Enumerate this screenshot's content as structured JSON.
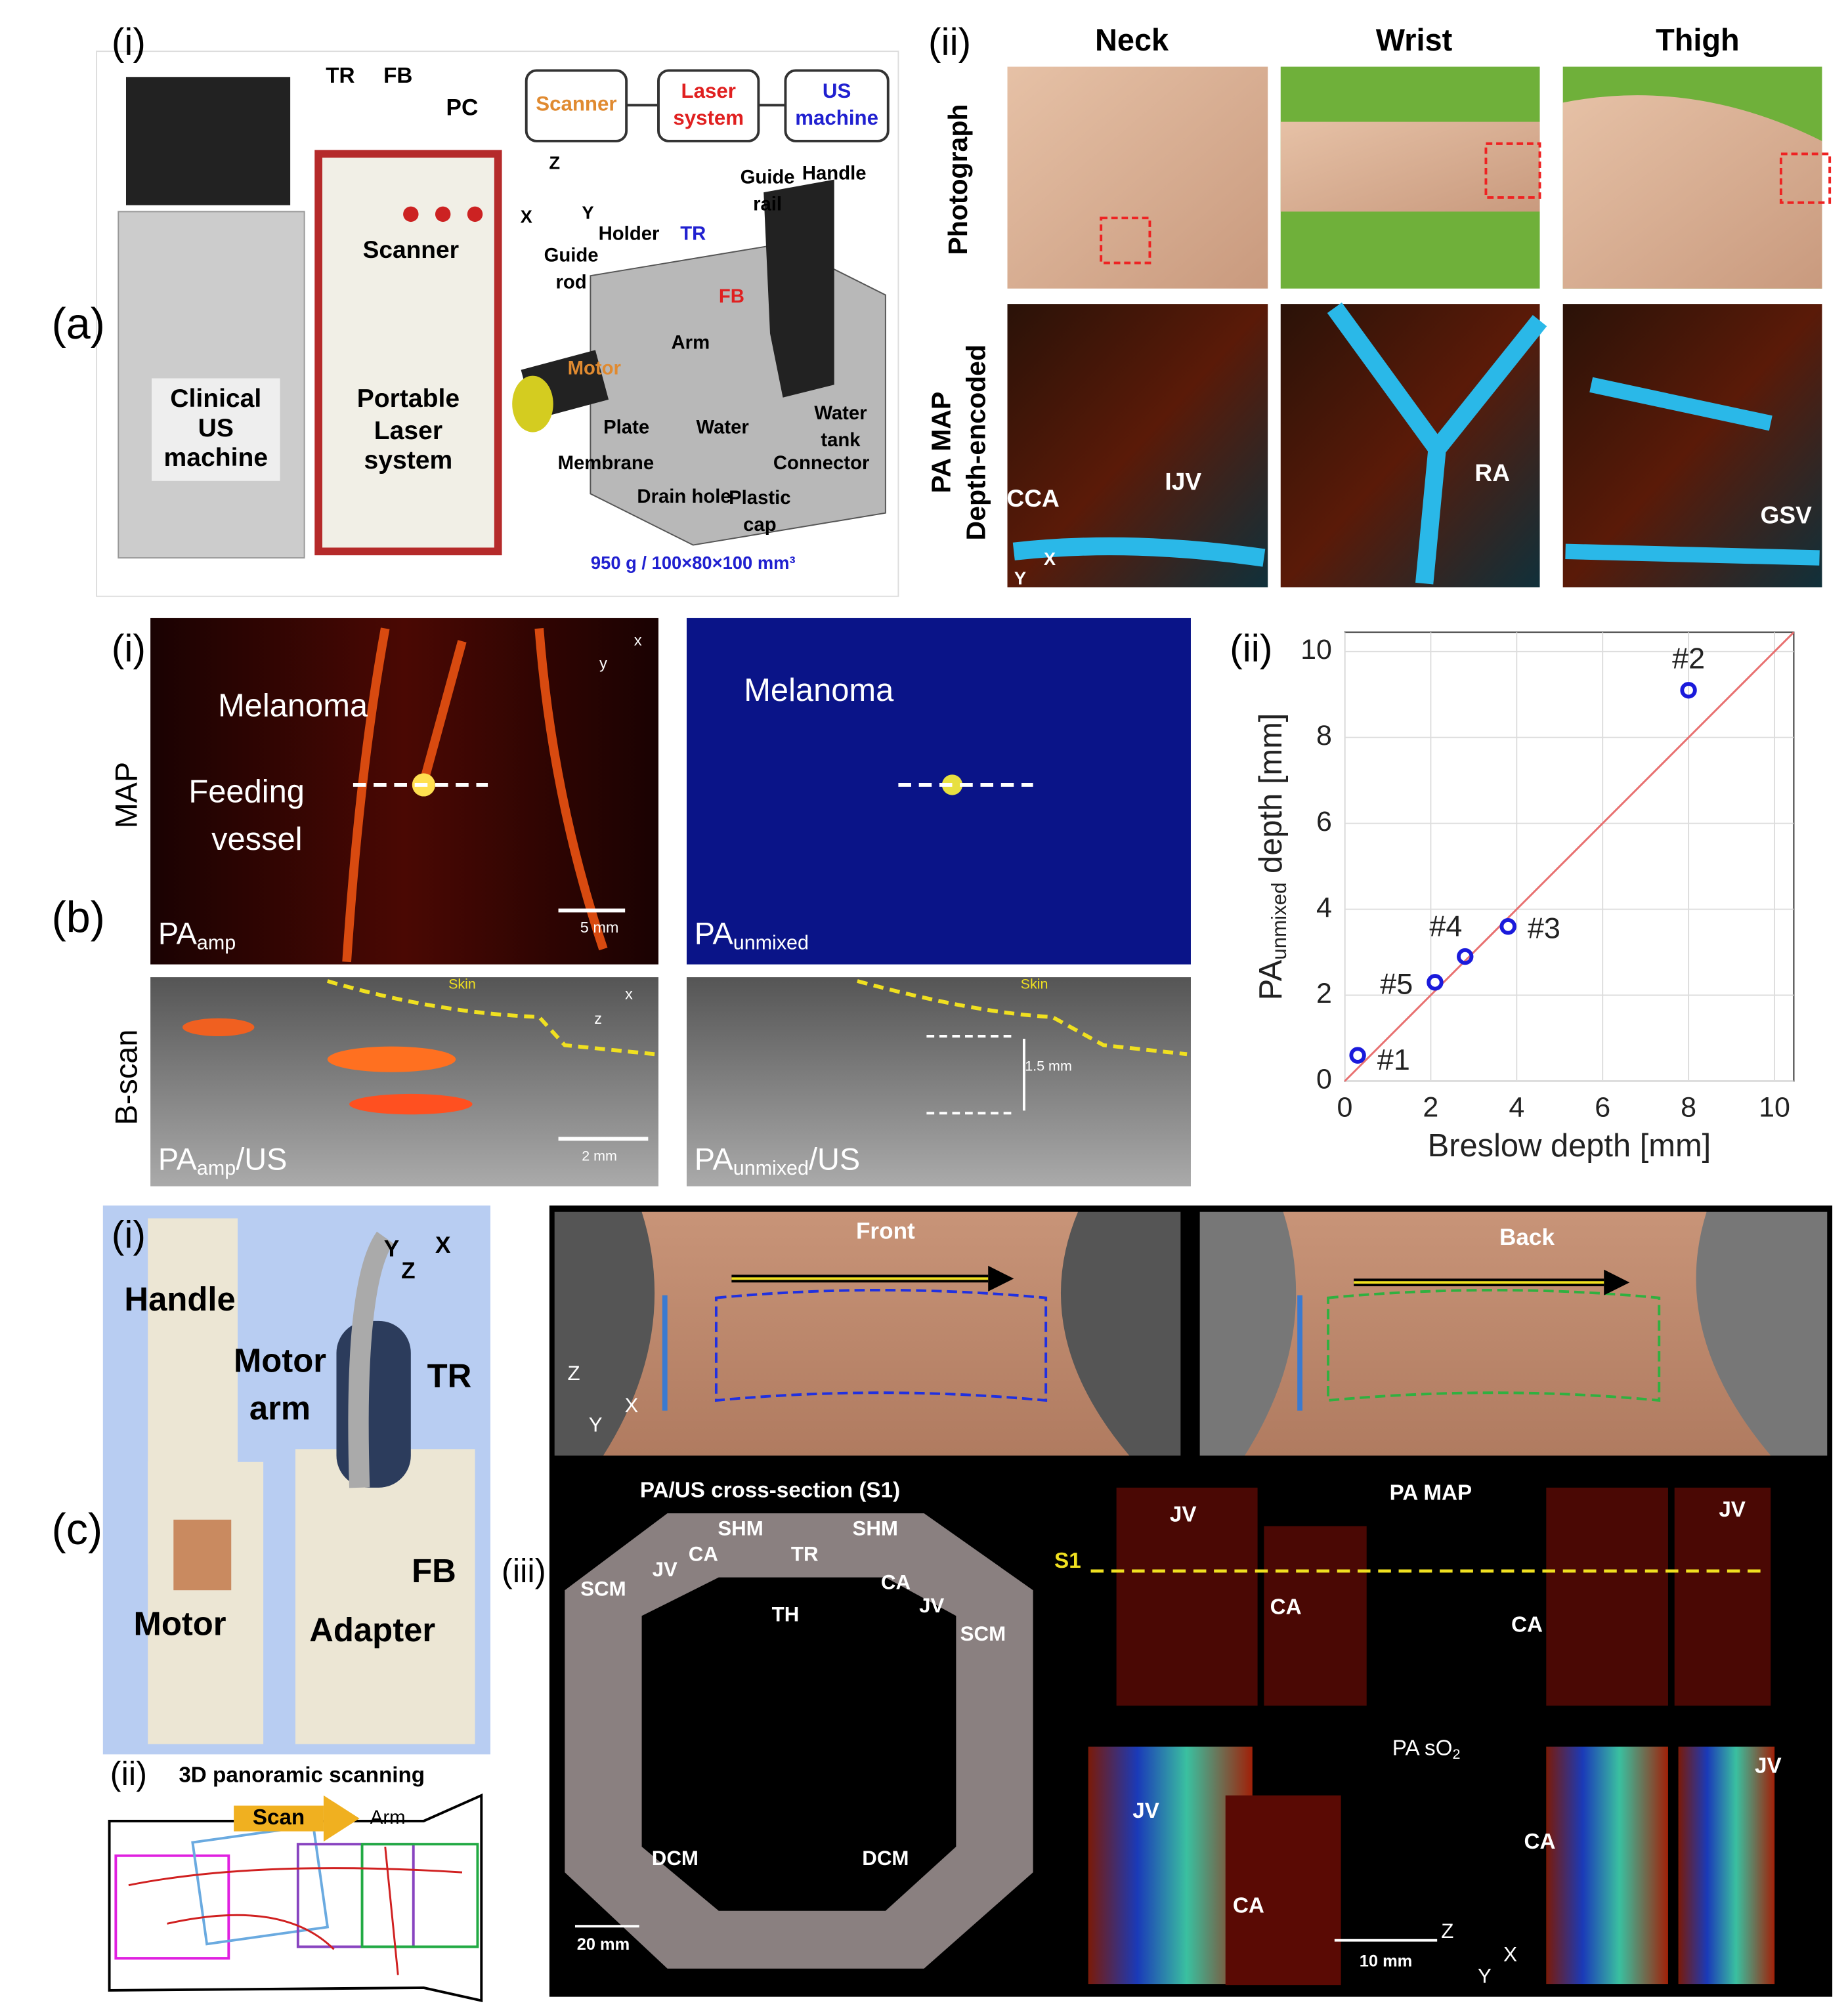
{
  "panel": {
    "a": "(a)",
    "b": "(b)",
    "c": "(c)"
  },
  "a_i": {
    "label": "(i)",
    "tr": "TR",
    "fb": "FB",
    "pc": "PC",
    "scanner": "Scanner",
    "clinical": [
      "Clinical",
      "US",
      "machine"
    ],
    "laser": [
      "Portable",
      "Laser",
      "system"
    ],
    "box_scanner": "Scanner",
    "box_laser": [
      "Laser",
      "system"
    ],
    "box_us": [
      "US",
      "machine"
    ],
    "axes": [
      "Z",
      "X",
      "Y"
    ],
    "guide_rail": [
      "Guide",
      "rail"
    ],
    "handle": "Handle",
    "holder": "Holder",
    "tr2": "TR",
    "guide_rod": [
      "Guide",
      "rod"
    ],
    "fb2": "FB",
    "arm": "Arm",
    "motor": "Motor",
    "plate": "Plate",
    "water": "Water",
    "water_tank": [
      "Water",
      "tank"
    ],
    "membrane": "Membrane",
    "connector": "Connector",
    "drain": "Drain hole",
    "cap": [
      "Plastic",
      "cap"
    ],
    "spec": "950 g / 100×80×100 mm³"
  },
  "a_ii": {
    "label": "(ii)",
    "columns": [
      "Neck",
      "Wrist",
      "Thigh"
    ],
    "row_photo": "Photograph",
    "row_pa": [
      "PA MAP",
      "Depth-encoded"
    ],
    "vessels": [
      "CCA",
      "IJV",
      "RA",
      "GSV"
    ],
    "axes": [
      "X",
      "Y"
    ]
  },
  "b_i": {
    "label": "(i)",
    "row_map": "MAP",
    "row_bscan": "B-scan",
    "melanoma": "Melanoma",
    "feeding": [
      "Feeding",
      "vessel"
    ],
    "melanoma2": "Melanoma",
    "pa_amp": {
      "main": "PA",
      "sub": "amp"
    },
    "pa_unmixed": {
      "main": "PA",
      "sub": "unmixed"
    },
    "pa_amp_us": {
      "main": "PA",
      "sub": "amp",
      "tail": "/US"
    },
    "pa_unmixed_us": {
      "main": "PA",
      "sub": "unmixed",
      "tail": "/US"
    },
    "scale_5": "5 mm",
    "scale_2": "2 mm",
    "skin": [
      "Skin",
      "Skin"
    ],
    "depth": "1.5 mm",
    "map_axes": [
      "x",
      "y"
    ],
    "bscan_axes": [
      "x",
      "z"
    ]
  },
  "b_ii": {
    "label": "(ii)",
    "chart": {
      "type": "scatter",
      "x_label": "Breslow depth [mm]",
      "y_label": {
        "main": "PA",
        "sub": "unmixed",
        "tail": " depth [mm]"
      },
      "x": [
        0.3,
        8.0,
        3.8,
        2.8,
        2.1
      ],
      "y": [
        0.6,
        9.1,
        3.6,
        2.9,
        2.3
      ],
      "point_labels": [
        "#1",
        "#2",
        "#3",
        "#4",
        "#5"
      ],
      "xlim": [
        0,
        10.45
      ],
      "ylim": [
        0,
        10.45
      ],
      "xticks": [
        0,
        2,
        4,
        6,
        8,
        10
      ],
      "yticks": [
        0,
        2,
        4,
        6,
        8,
        10
      ],
      "color": "#1a1adb",
      "line_color": "#e87070",
      "grid": true
    }
  },
  "c_i": {
    "label": "(i)",
    "handle": "Handle",
    "motor_arm": [
      "Motor",
      "arm"
    ],
    "tr": "TR",
    "fb": "FB",
    "motor": "Motor",
    "adapter": "Adapter",
    "axes": [
      "Y",
      "Z",
      "X"
    ]
  },
  "c_ii": {
    "label": "(ii)",
    "title": "3D panoramic scanning",
    "scan": "Scan",
    "arm": "Arm"
  },
  "c_iii": {
    "label": "(iii)",
    "front": "Front",
    "back": "Back",
    "axes": [
      "Z",
      "X",
      "Y"
    ],
    "cross": "PA/US cross-section (S1)",
    "anatomy": [
      "SHM",
      "SHM",
      "CA",
      "TR",
      "CA",
      "JV",
      "JV",
      "SCM",
      "SCM",
      "TH",
      "DCM",
      "DCM"
    ],
    "scale_20": "20 mm",
    "pa_map": "PA MAP",
    "map_labels": [
      "JV",
      "JV",
      "S1",
      "CA",
      "CA"
    ],
    "pa_so2": {
      "main": "PA sO",
      "sub": "2"
    },
    "so2_labels": [
      "JV",
      "CA",
      "JV",
      "CA"
    ],
    "scale_10": "10 mm",
    "axes2": [
      "Z",
      "X",
      "Y"
    ]
  }
}
